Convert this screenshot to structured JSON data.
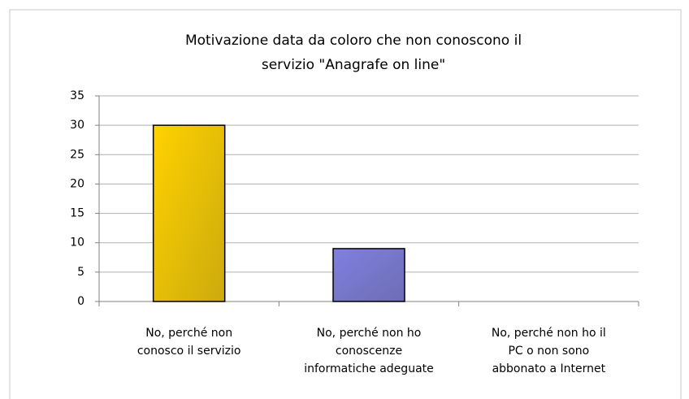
{
  "chart_data": {
    "type": "bar",
    "title": "Motivazione data da coloro che non conoscono il\nservizio \"Anagrafe on line\"",
    "categories": [
      "No, perché non\nconosco il servizio",
      "No, perché non ho\nconoscenze\ninformatiche adeguate",
      "No, perché non ho il\nPC o non sono\nabbonato a Internet"
    ],
    "values": [
      30,
      9,
      0
    ],
    "colors": [
      "#ffd200",
      "#8080e0",
      "#993366"
    ],
    "ylim": [
      0,
      35
    ],
    "yticks": [
      0,
      5,
      10,
      15,
      20,
      25,
      30,
      35
    ],
    "grid": true
  }
}
